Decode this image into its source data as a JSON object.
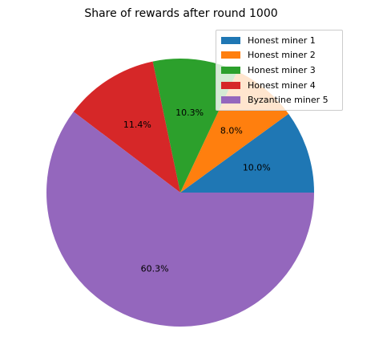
{
  "chart_data": {
    "type": "pie",
    "title": "Share of rewards after round 1000",
    "legend_position": "top-right",
    "start_angle_deg": 0,
    "direction": "counterclockwise",
    "slices": [
      {
        "name": "Honest miner 1",
        "value": 10.0,
        "label": "10.0%",
        "color": "#1f77b4"
      },
      {
        "name": "Honest miner 2",
        "value": 8.0,
        "label": "8.0%",
        "color": "#ff7f0e"
      },
      {
        "name": "Honest miner 3",
        "value": 10.3,
        "label": "10.3%",
        "color": "#2ca02c"
      },
      {
        "name": "Honest miner 4",
        "value": 11.4,
        "label": "11.4%",
        "color": "#d62728"
      },
      {
        "name": "Byzantine miner 5",
        "value": 60.3,
        "label": "60.3%",
        "color": "#9467bd"
      }
    ]
  }
}
